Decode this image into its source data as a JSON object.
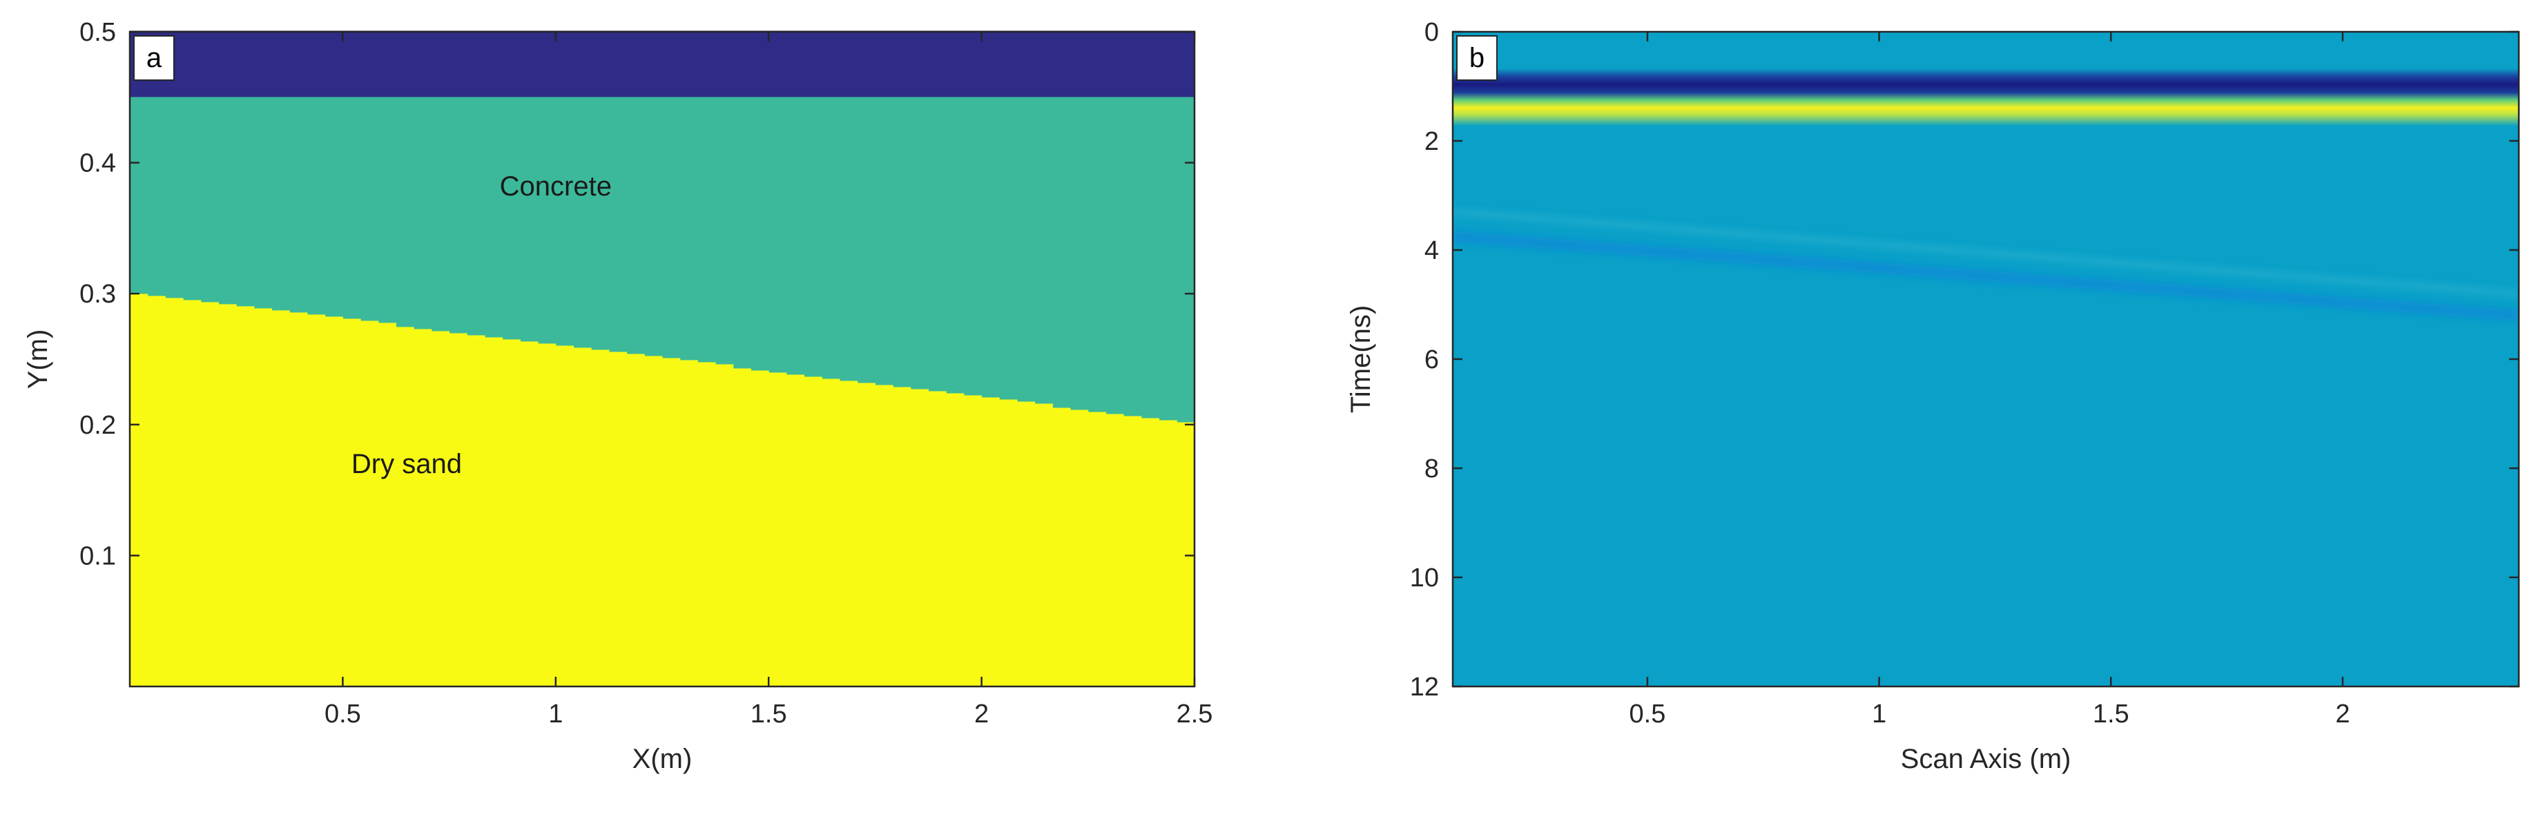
{
  "chart_data": [
    {
      "panel": "a",
      "type": "heatmap",
      "xlabel": "X(m)",
      "ylabel": "Y(m)",
      "xlim": [
        0,
        2.5
      ],
      "ylim": [
        0,
        0.5
      ],
      "xticks": [
        0.5,
        1,
        1.5,
        2,
        2.5
      ],
      "yticks": [
        0.1,
        0.2,
        0.3,
        0.4,
        0.5
      ],
      "layers": [
        {
          "name": "",
          "color": "#2e2c86",
          "top": [
            0.5,
            0.5
          ],
          "bottom": [
            0.45,
            0.45
          ]
        },
        {
          "name": "Concrete",
          "color": "#3cb99a",
          "top": [
            0.45,
            0.45
          ],
          "bottom": [
            0.3,
            0.2
          ]
        },
        {
          "name": "Dry sand",
          "color": "#f8fa14",
          "top": [
            0.3,
            0.2
          ],
          "bottom": [
            0.0,
            0.0
          ]
        }
      ],
      "labels": [
        {
          "text": "Concrete",
          "x": 1.0,
          "y": 0.375
        },
        {
          "text": "Dry sand",
          "x": 0.65,
          "y": 0.163
        }
      ]
    },
    {
      "panel": "b",
      "type": "heatmap",
      "xlabel": "Scan Axis (m)",
      "ylabel": "Time(ns)",
      "xlim": [
        0.08,
        2.38
      ],
      "ylim": [
        12,
        0
      ],
      "xticks": [
        0.5,
        1,
        1.5,
        2
      ],
      "yticks": [
        0,
        2,
        4,
        6,
        8,
        10,
        12
      ],
      "background_color": "#0aa0c8",
      "events": [
        {
          "kind": "direct-wave-negative",
          "time": [
            1.0,
            1.0
          ],
          "color": "#1a1a80"
        },
        {
          "kind": "direct-wave-positive",
          "time": [
            1.4,
            1.4
          ],
          "color": "#f5f020"
        },
        {
          "kind": "interface-reflection",
          "time": [
            3.75,
            5.2
          ],
          "color": "#0f8cd6"
        },
        {
          "kind": "faint-multiple",
          "time": [
            3.3,
            4.8
          ],
          "color": "#2bb3cf"
        }
      ]
    }
  ]
}
